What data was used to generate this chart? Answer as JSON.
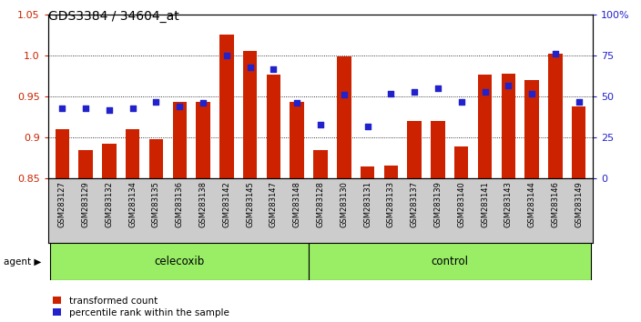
{
  "title": "GDS3384 / 34604_at",
  "samples": [
    "GSM283127",
    "GSM283129",
    "GSM283132",
    "GSM283134",
    "GSM283135",
    "GSM283136",
    "GSM283138",
    "GSM283142",
    "GSM283145",
    "GSM283147",
    "GSM283148",
    "GSM283128",
    "GSM283130",
    "GSM283131",
    "GSM283133",
    "GSM283137",
    "GSM283139",
    "GSM283140",
    "GSM283141",
    "GSM283143",
    "GSM283144",
    "GSM283146",
    "GSM283149"
  ],
  "transformed_count": [
    0.91,
    0.885,
    0.893,
    0.91,
    0.898,
    0.944,
    0.944,
    1.025,
    1.006,
    0.977,
    0.944,
    0.885,
    0.999,
    0.865,
    0.866,
    0.92,
    0.92,
    0.889,
    0.977,
    0.978,
    0.97,
    1.002,
    0.938
  ],
  "percentile_rank": [
    43,
    43,
    42,
    43,
    47,
    44,
    46,
    75,
    68,
    67,
    46,
    33,
    51,
    32,
    52,
    53,
    55,
    47,
    53,
    57,
    52,
    76,
    47
  ],
  "celecoxib_count": 11,
  "ylim_left": [
    0.85,
    1.05
  ],
  "ylim_right": [
    0,
    100
  ],
  "yticks_left": [
    0.85,
    0.9,
    0.95,
    1.0,
    1.05
  ],
  "yticks_right": [
    0,
    25,
    50,
    75,
    100
  ],
  "bar_color": "#cc2200",
  "dot_color": "#2222cc",
  "green_color": "#99ee66",
  "gray_color": "#cccccc",
  "background_color": "#ffffff",
  "left_tick_color": "#cc2200",
  "right_tick_color": "#2222cc"
}
